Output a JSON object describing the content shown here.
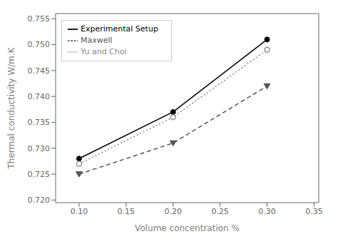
{
  "chart_data": {
    "type": "line",
    "x": [
      0.1,
      0.2,
      0.3
    ],
    "series": [
      {
        "name": "Experimental Setup",
        "color": "#000000",
        "line_style": "solid",
        "marker": "circle",
        "values": [
          0.728,
          0.737,
          0.751
        ]
      },
      {
        "name": "Yu and Choi",
        "color": "#888888",
        "line_style": "dotted",
        "marker": "open_circle",
        "values": [
          0.727,
          0.736,
          0.749
        ]
      },
      {
        "name": "Maxwell",
        "color": "#555555",
        "line_style": "dashed",
        "marker": "triangle_down",
        "values": [
          0.725,
          0.731,
          0.742
        ]
      }
    ],
    "xlabel": "Volume concentration %",
    "ylabel": "Thermal conductivity W/m.K",
    "xlim": [
      0.075,
      0.355
    ],
    "ylim": [
      0.7195,
      0.756
    ],
    "xticks": [
      {
        "value": 0.1,
        "label": "0.10"
      },
      0.15,
      {
        "value": 0.2,
        "label": "0.20"
      },
      0.25,
      {
        "value": 0.3,
        "label": "0.30"
      },
      0.35
    ],
    "yticks": [
      {
        "value": 0.72,
        "label": "0.720"
      },
      0.725,
      {
        "value": 0.73,
        "label": "0.730"
      },
      0.735,
      {
        "value": 0.74,
        "label": "0.740"
      },
      0.745,
      {
        "value": 0.75,
        "label": "0.750"
      },
      0.755
    ],
    "legend": "upper left",
    "grid": false
  }
}
